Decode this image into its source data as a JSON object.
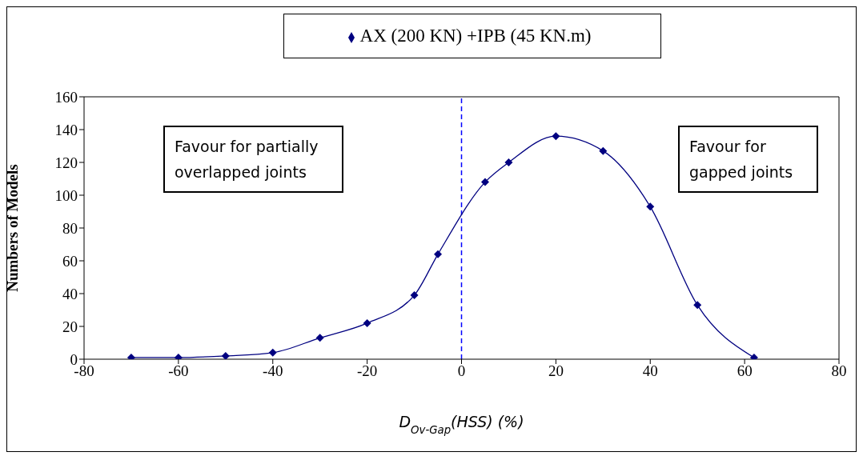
{
  "chart_data": {
    "type": "line",
    "xlabel": "D$_{Ov-Gap}$(HSS) (%)",
    "ylabel": "Numbers of Models",
    "x": [
      -70,
      -60,
      -50,
      -40,
      -30,
      -20,
      -10,
      -5,
      5,
      10,
      20,
      30,
      40,
      50,
      62
    ],
    "series": [
      {
        "name": "AX (200 KN) +IPB (45 KN.m)",
        "color": "#000080",
        "values": [
          1,
          1,
          2,
          4,
          13,
          22,
          39,
          64,
          108,
          120,
          136,
          127,
          93,
          33,
          1
        ]
      }
    ],
    "xlim": [
      -80,
      80
    ],
    "xticks": [
      -80,
      -60,
      -40,
      -20,
      0,
      20,
      40,
      60,
      80
    ],
    "ylim": [
      0,
      160
    ],
    "yticks": [
      0,
      20,
      40,
      60,
      80,
      100,
      120,
      140,
      160
    ],
    "ref_lines": [
      {
        "axis": "x",
        "value": 0,
        "color": "#0000ff",
        "line_style": "dashed"
      }
    ],
    "annotations": [
      "Favour for partially overlapped joints",
      "Favour for gapped joints"
    ],
    "legend": "top",
    "marker": "diamond",
    "line_style": "solid",
    "grid": false
  }
}
